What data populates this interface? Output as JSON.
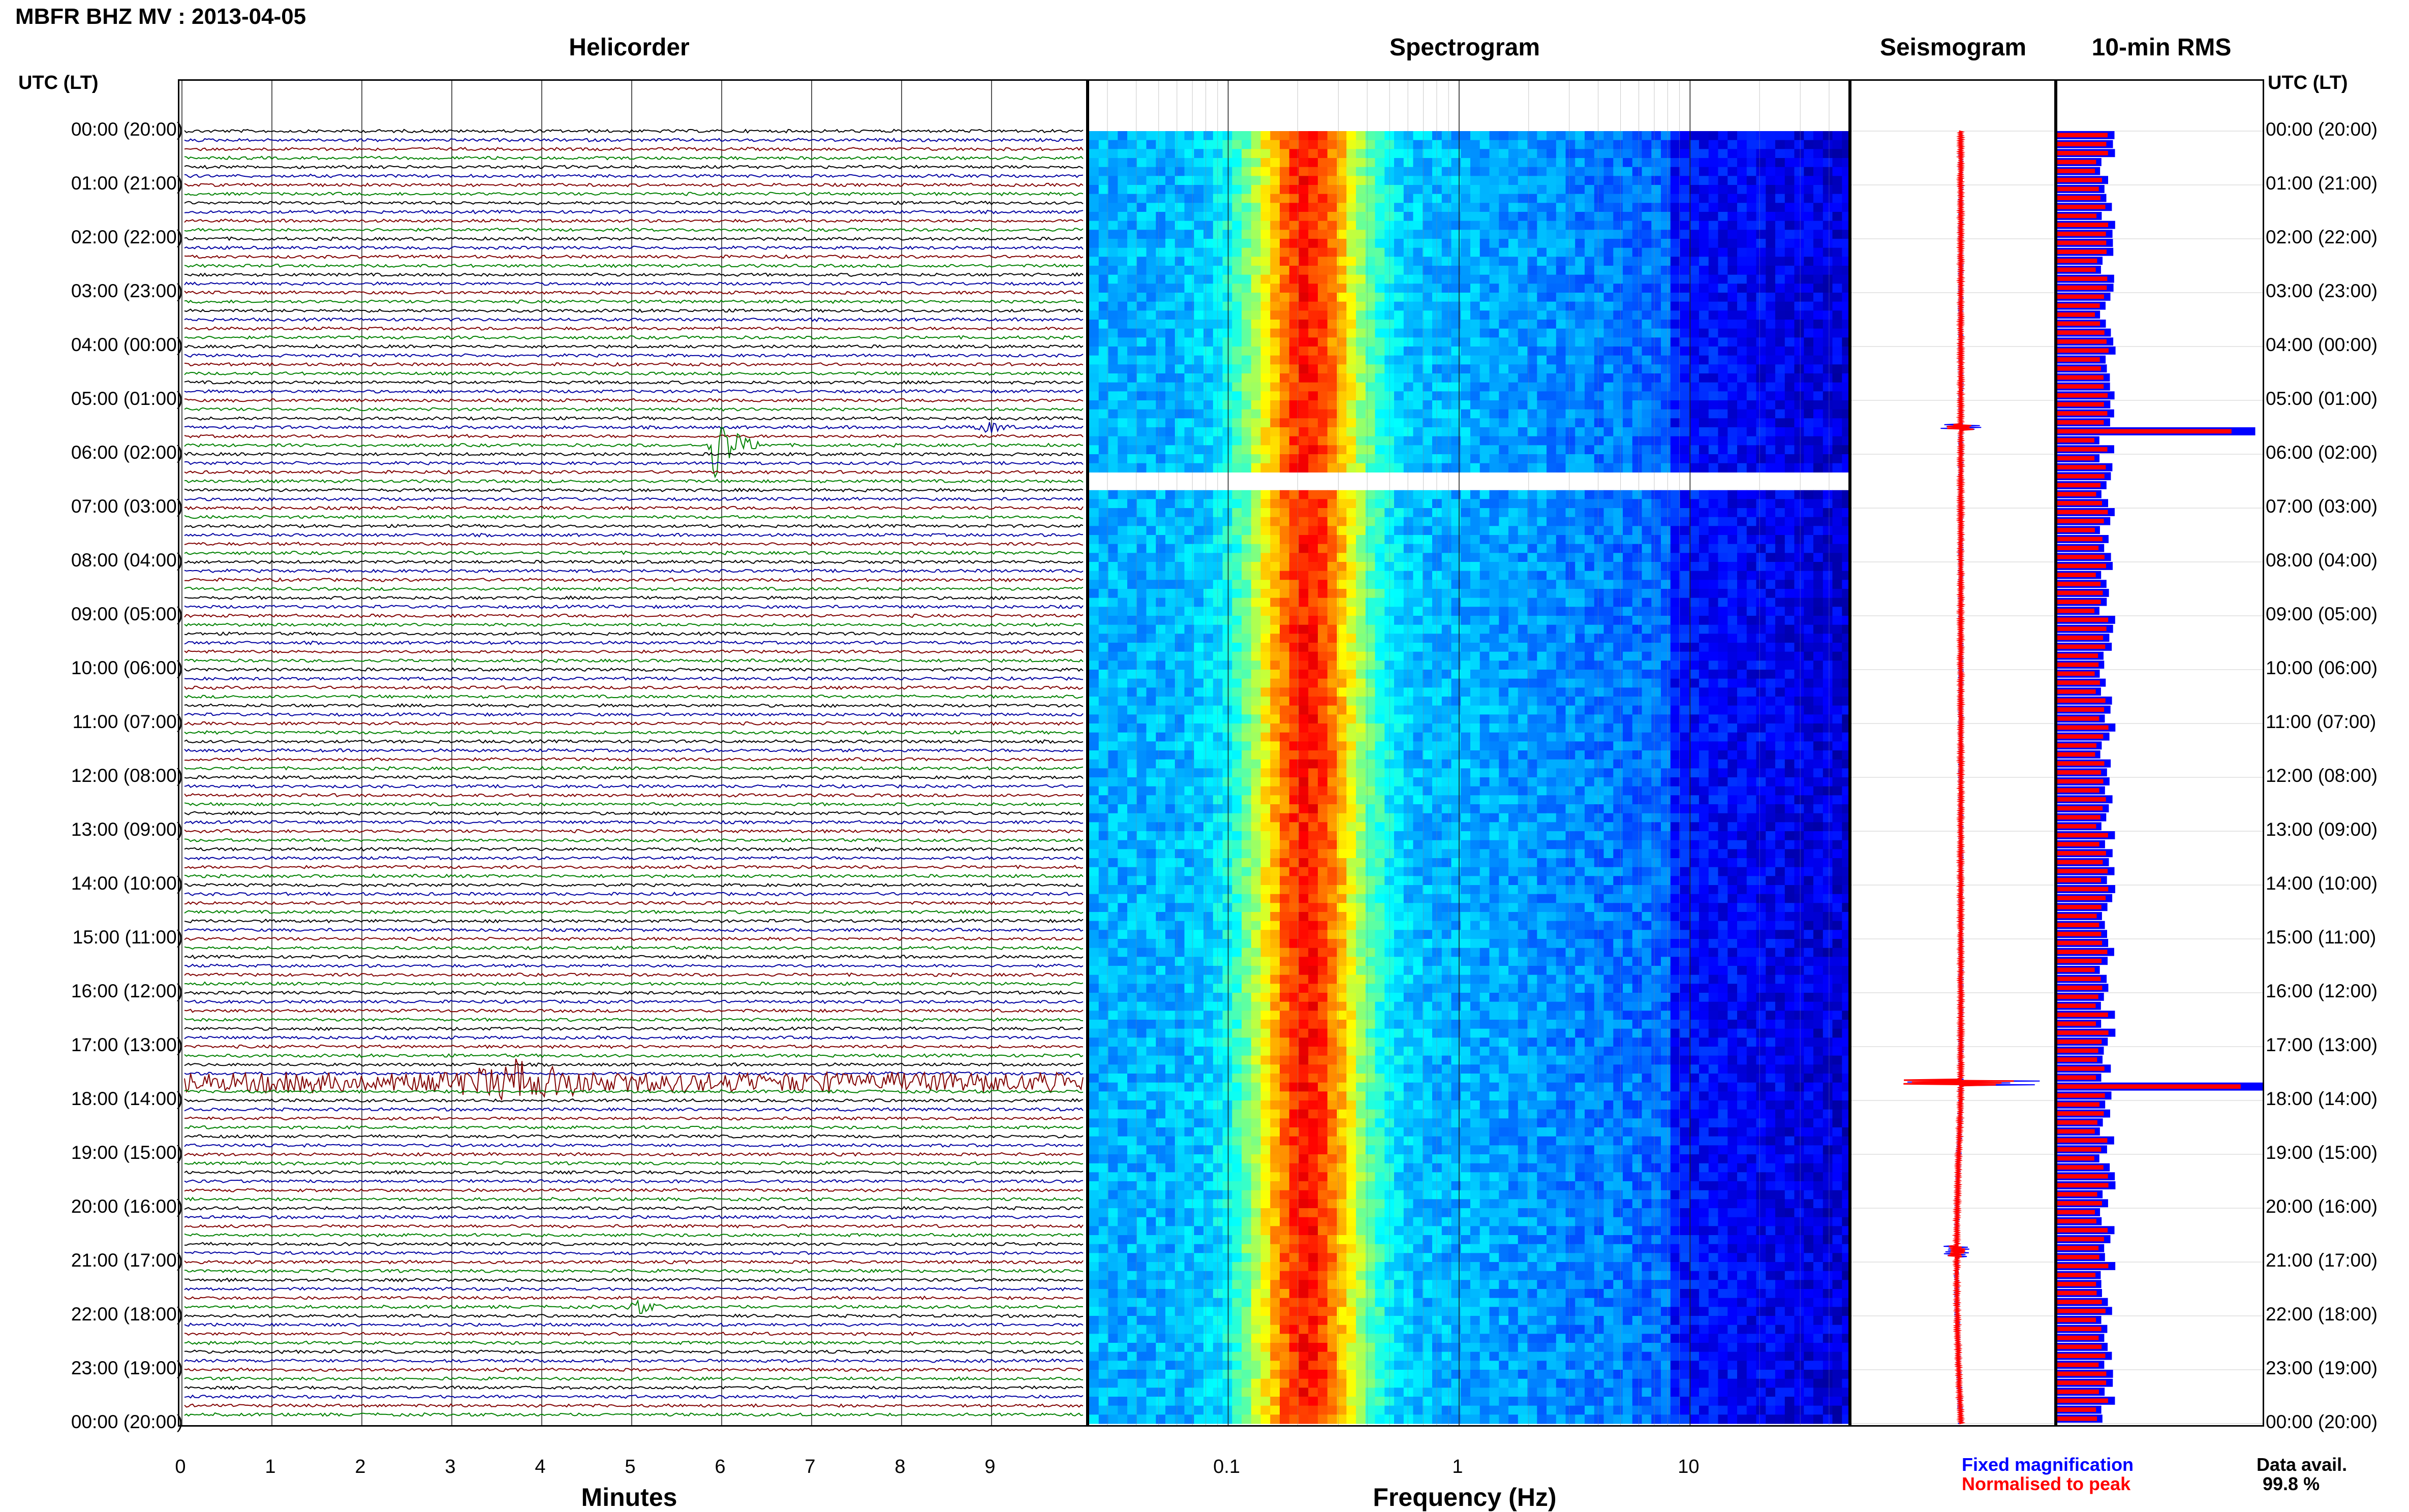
{
  "header": {
    "title": "MBFR BHZ MV : 2013-04-05",
    "utc_label_left": "UTC (LT)",
    "utc_label_right": "UTC (LT)"
  },
  "panels": {
    "helicorder": "Helicorder",
    "spectrogram": "Spectrogram",
    "seismogram": "Seismogram",
    "rms": "10-min RMS"
  },
  "time_labels": [
    "00:00 (20:00)",
    "01:00 (21:00)",
    "02:00 (22:00)",
    "03:00 (23:00)",
    "04:00 (00:00)",
    "05:00 (01:00)",
    "06:00 (02:00)",
    "07:00 (03:00)",
    "08:00 (04:00)",
    "09:00 (05:00)",
    "10:00 (06:00)",
    "11:00 (07:00)",
    "12:00 (08:00)",
    "13:00 (09:00)",
    "14:00 (10:00)",
    "15:00 (11:00)",
    "16:00 (12:00)",
    "17:00 (13:00)",
    "18:00 (14:00)",
    "19:00 (15:00)",
    "20:00 (16:00)",
    "21:00 (17:00)",
    "22:00 (18:00)",
    "23:00 (19:00)",
    "00:00 (20:00)"
  ],
  "legend": {
    "fixed": "Fixed magnification",
    "normalised": "Normalised to peak",
    "data_avail_label": "Data avail.",
    "data_avail_value": "99.8 %"
  },
  "colors": {
    "fixed": "#0000ff",
    "normalised": "#ff0000",
    "trace_cycle": [
      "#000000",
      "#0000a0",
      "#800000",
      "#008000"
    ]
  },
  "chart_data": [
    {
      "type": "line",
      "title": "Helicorder",
      "xlabel": "Minutes",
      "x_ticks": [
        "0",
        "1",
        "2",
        "3",
        "4",
        "5",
        "6",
        "7",
        "8",
        "9"
      ],
      "xlim": [
        0,
        10
      ],
      "rows": 144,
      "row_minutes": 10,
      "events": [
        {
          "time_utc": "05:50",
          "minute": 5.9,
          "amplitude": "large"
        },
        {
          "time_utc": "17:40",
          "minute": 4.1,
          "amplitude": "large, sustained"
        },
        {
          "time_utc": "05:30",
          "minute": 9.0,
          "amplitude": "small"
        },
        {
          "time_utc": "21:50",
          "minute": 5.1,
          "amplitude": "small"
        }
      ]
    },
    {
      "type": "heatmap",
      "title": "Spectrogram",
      "xlabel": "Frequency (Hz)",
      "x_scale": "log",
      "x_ticks": [
        "0.1",
        "1",
        "10"
      ],
      "xlim": [
        0.025,
        50
      ],
      "colormap": "jet",
      "data_gap_utc": [
        "06:20",
        "06:40"
      ]
    },
    {
      "type": "line",
      "title": "Seismogram",
      "series": [
        {
          "name": "Fixed magnification",
          "color": "#0000ff"
        },
        {
          "name": "Normalised to peak",
          "color": "#ff0000"
        }
      ]
    },
    {
      "type": "bar",
      "title": "10-min RMS",
      "orientation": "horizontal",
      "series": [
        {
          "name": "Fixed magnification",
          "color": "#0000ff"
        },
        {
          "name": "Normalised to peak",
          "color": "#ff0000"
        }
      ],
      "peaks_utc": [
        "05:30",
        "17:40"
      ]
    }
  ]
}
